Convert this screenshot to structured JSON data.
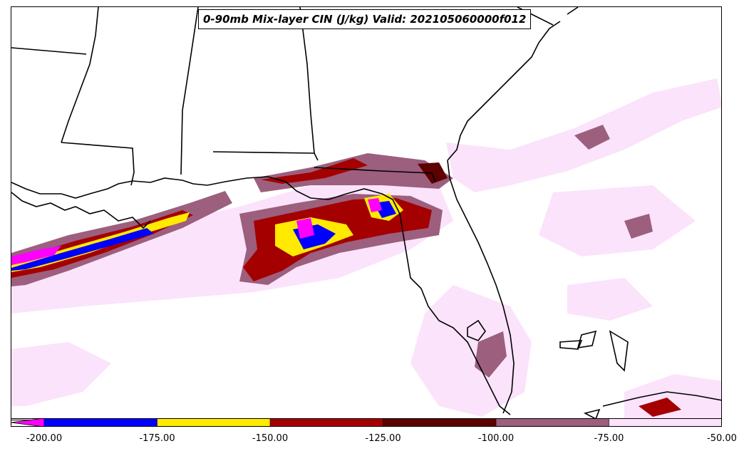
{
  "title": "0-90mb Mix-layer CIN (J/kg) Valid: 202105060000f012",
  "colorbar": {
    "levels": [
      {
        "color": "#ff00ff"
      },
      {
        "color": "#0000ff"
      },
      {
        "color": "#ffea00"
      },
      {
        "color": "#a40000"
      },
      {
        "color": "#5c0000"
      },
      {
        "color": "#9c5f7d"
      },
      {
        "color": "#fbe3fb"
      }
    ],
    "tick_labels": [
      "-200.00",
      "-175.00",
      "-150.00",
      "-125.00",
      "-100.00",
      "-75.00",
      "-50.00"
    ]
  },
  "map": {
    "region": "US Gulf Coast and Florida",
    "field": "mixed-layer convective inhibition",
    "style": "filled contours over state/coastline outlines"
  }
}
